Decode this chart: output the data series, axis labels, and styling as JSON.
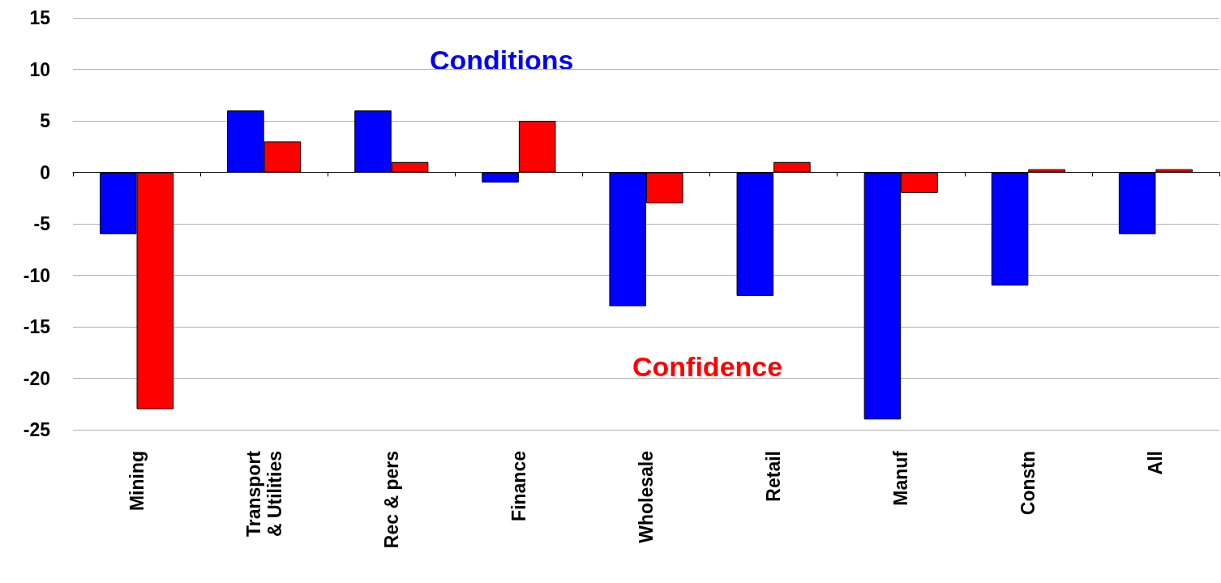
{
  "chart_data": {
    "type": "bar",
    "categories": [
      "Mining",
      "Transport\n& Utilities",
      "Rec & pers",
      "Finance",
      "Wholesale",
      "Retail",
      "Manuf",
      "Constn",
      "All"
    ],
    "series": [
      {
        "name": "Conditions",
        "color": "#0000ff",
        "values": [
          -6,
          6,
          6,
          -1,
          -13,
          -12,
          -24,
          -11,
          -6
        ]
      },
      {
        "name": "Confidence",
        "color": "#ff0000",
        "values": [
          -23,
          3,
          1,
          5,
          -3,
          1,
          -2,
          0.3,
          0.3
        ]
      }
    ],
    "ylim": [
      -25,
      15
    ],
    "yticks": [
      -25,
      -20,
      -15,
      -10,
      -5,
      0,
      5,
      10,
      15
    ],
    "grid": "y",
    "legend": false
  }
}
